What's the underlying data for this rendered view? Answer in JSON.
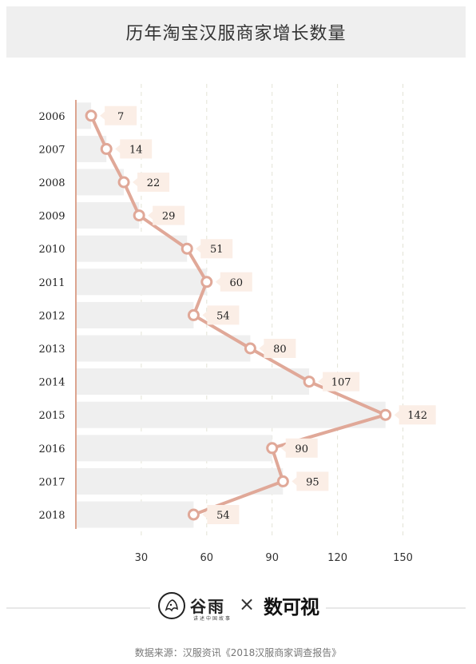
{
  "title": "历年淘宝汉服商家增长数量",
  "chart_data": {
    "type": "bar",
    "orientation": "horizontal",
    "title": "历年淘宝汉服商家增长数量",
    "categories": [
      "2006",
      "2007",
      "2008",
      "2009",
      "2010",
      "2011",
      "2012",
      "2013",
      "2014",
      "2015",
      "2016",
      "2017",
      "2018"
    ],
    "values": [
      7,
      14,
      22,
      29,
      51,
      60,
      54,
      80,
      107,
      142,
      90,
      95,
      54
    ],
    "overlay_line": true,
    "data_labels": true,
    "x_ticks": [
      30,
      60,
      90,
      120,
      150
    ],
    "xlim": [
      0,
      162
    ],
    "grid": "vertical dashed",
    "bar_color": "#efefef",
    "line_color": "#e0a898",
    "label_color": "#fbeee6"
  },
  "logos": {
    "partner1_name": "谷雨",
    "partner1_slogan": "讲述中国故事",
    "separator": "×",
    "partner2_name": "数可视"
  },
  "source": "数据来源：汉服资讯《2018汉服商家调查报告》"
}
